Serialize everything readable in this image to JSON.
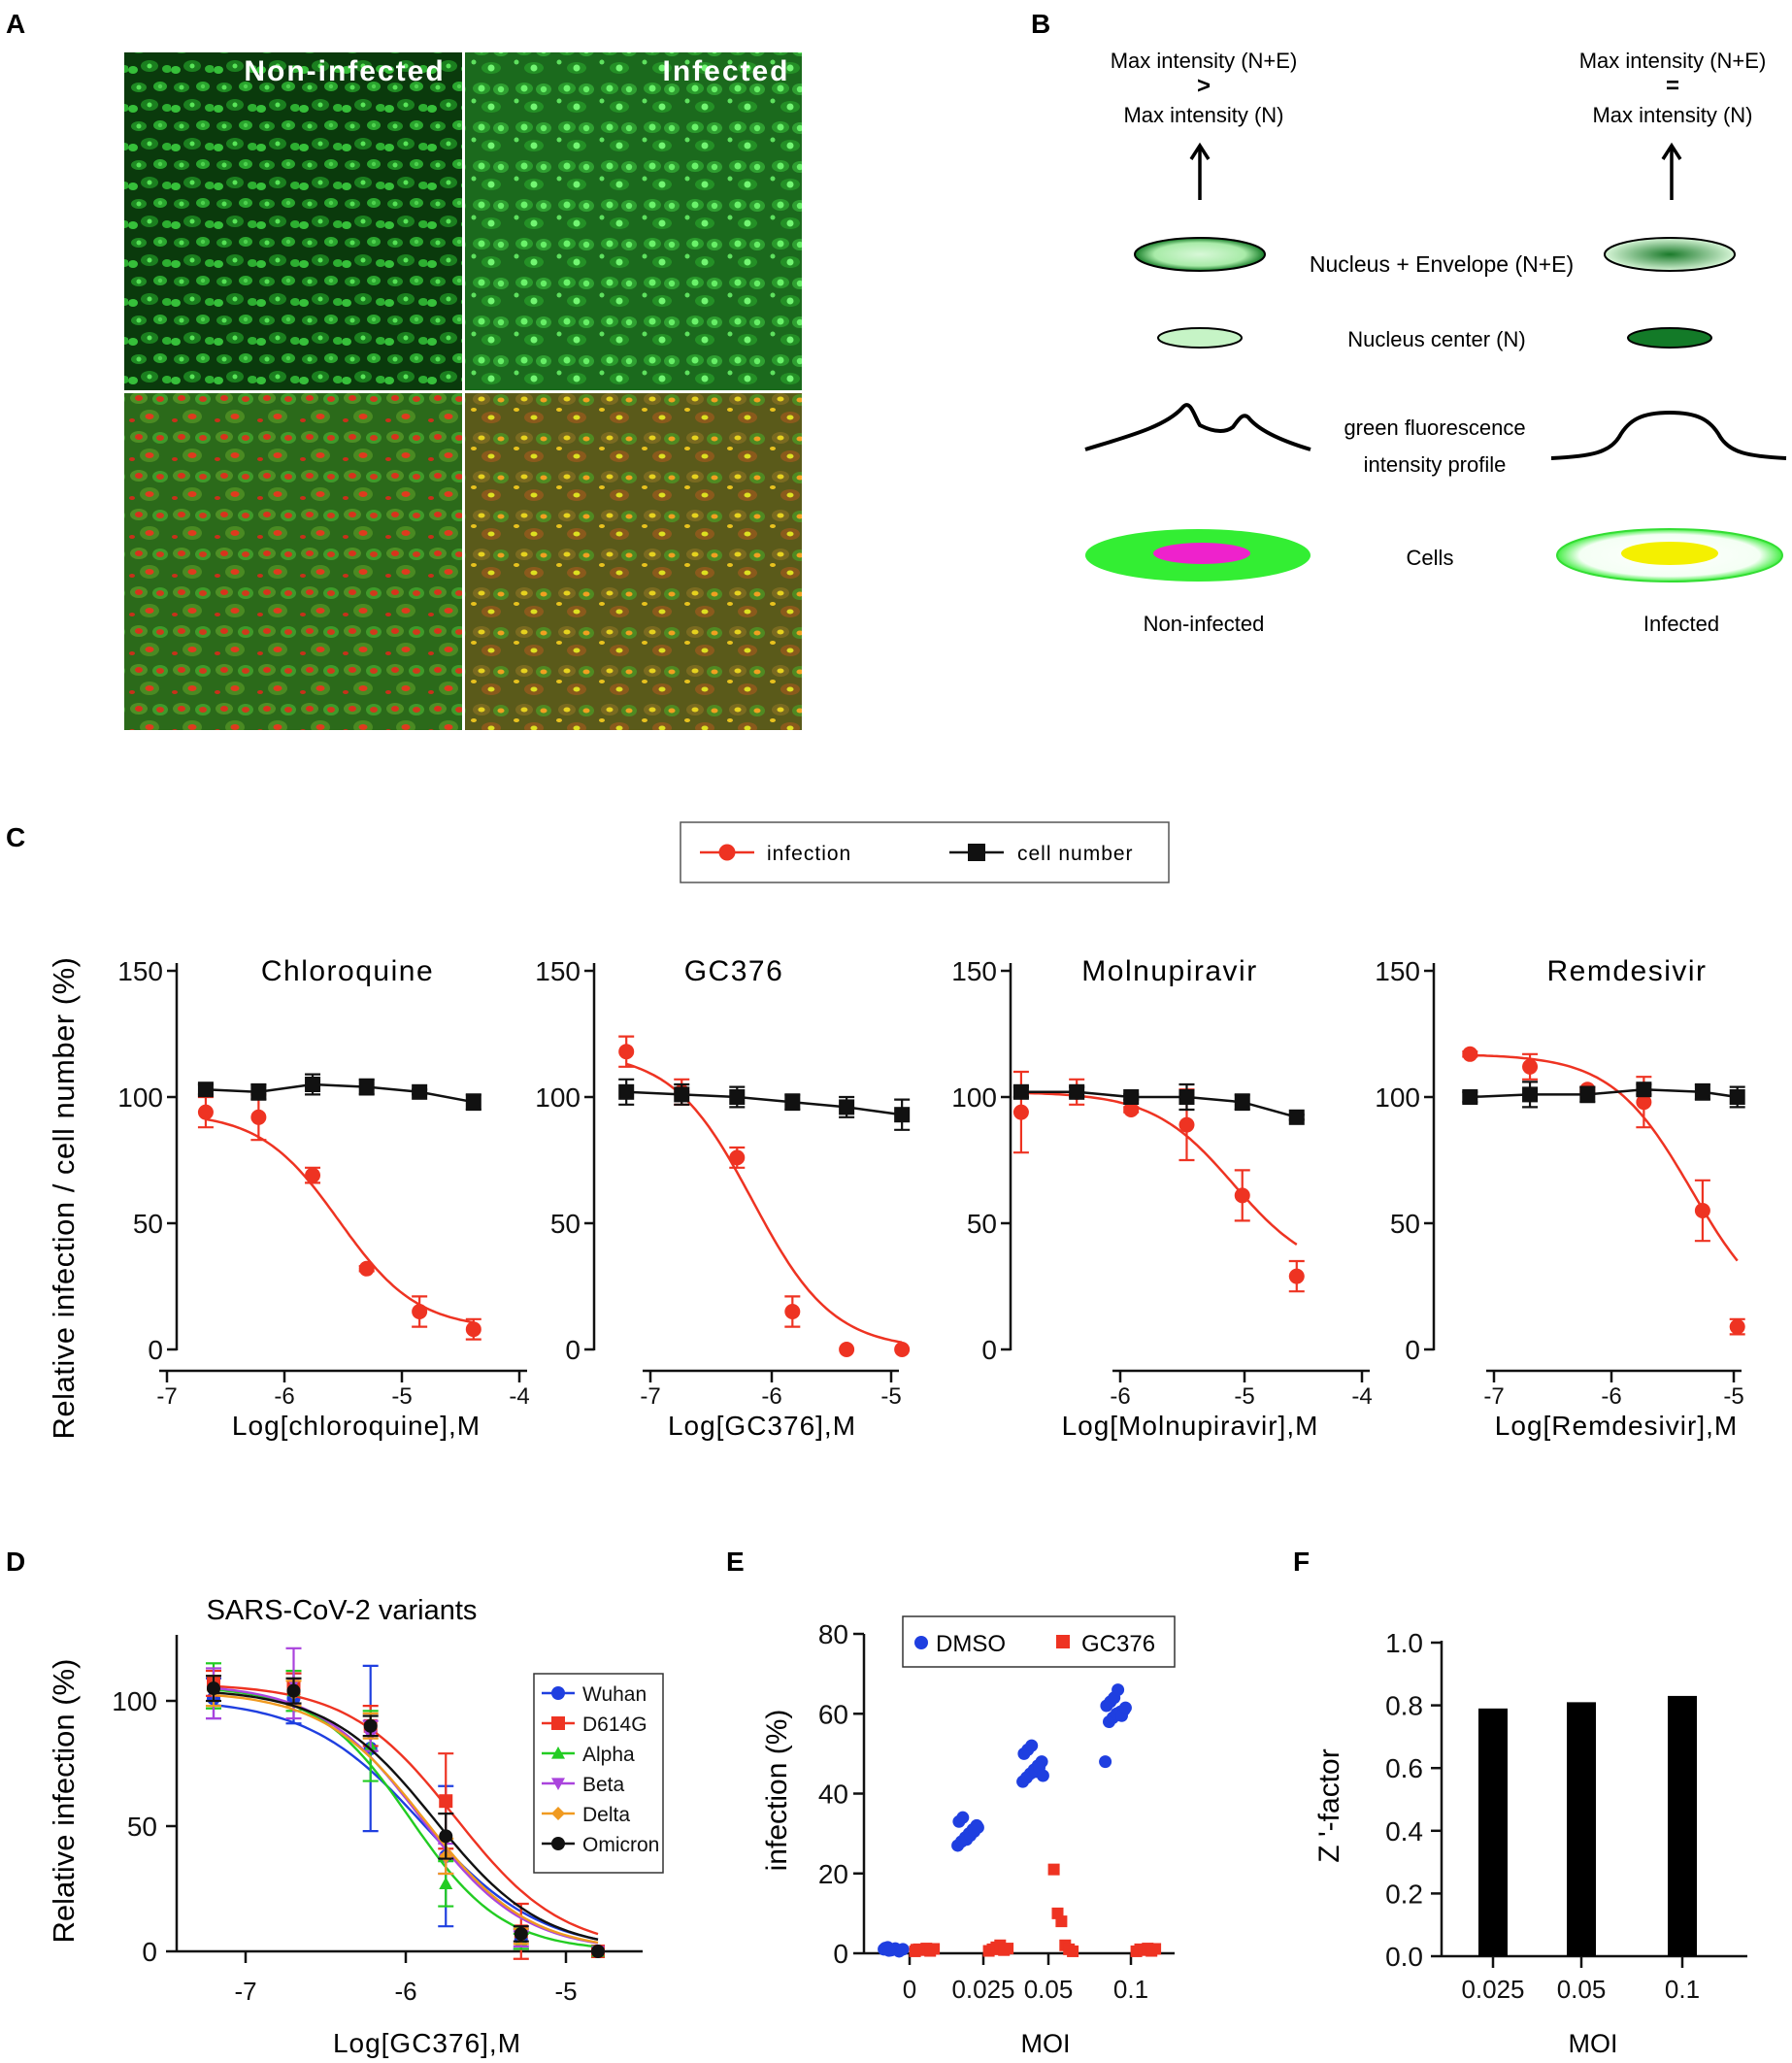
{
  "panel_letters": {
    "a": "A",
    "b": "B",
    "c": "C",
    "d": "D",
    "e": "E",
    "f": "F"
  },
  "colors": {
    "red": "#ee3322",
    "black": "#111111",
    "blue": "#1f3fe0",
    "green": "#22cc22",
    "violet": "#aa44dd",
    "orange": "#f09a20",
    "bright_green": "#33ee33",
    "magenta": "#ee22cc",
    "yellow": "#f4f000"
  },
  "panel_a": {
    "label_noninfected": "Non-infected",
    "label_infected": "Infected"
  },
  "panel_b": {
    "left_top": "Max intensity (N+E)",
    "left_op": ">",
    "left_bottom": "Max intensity (N)",
    "right_top": "Max intensity (N+E)",
    "right_op": "=",
    "right_bottom": "Max intensity (N)",
    "nucleus_envelope": "Nucleus + Envelope (N+E)",
    "nucleus_center": "Nucleus center (N)",
    "profile_line1": "green fluorescence",
    "profile_line2": "intensity profile",
    "cells": "Cells",
    "noninfected": "Non-infected",
    "infected": "Infected"
  },
  "chart_data": [
    {
      "panel": "C",
      "type": "line",
      "legend": [
        "infection",
        "cell number"
      ],
      "ylabel": "Relative infection / cell number (%)",
      "ylim": [
        0,
        150
      ],
      "yticks": [
        "0",
        "50",
        "100",
        "150"
      ],
      "subplots": [
        {
          "title": "Chloroquine",
          "xlabel": "Log[chloroquine],M",
          "xlim": [
            -7,
            -4
          ],
          "xticks": [
            "-7",
            "-6",
            "-5",
            "-4"
          ],
          "series": [
            {
              "name": "infection",
              "x": [
                -6.67,
                -6.22,
                -5.76,
                -5.3,
                -4.85,
                -4.39
              ],
              "y": [
                94,
                92,
                69,
                32,
                15,
                8
              ],
              "err": [
                6,
                9,
                3,
                1,
                6,
                4
              ]
            },
            {
              "name": "cell number",
              "x": [
                -6.67,
                -6.22,
                -5.76,
                -5.3,
                -4.85,
                -4.39
              ],
              "y": [
                103,
                102,
                105,
                104,
                102,
                98
              ],
              "err": [
                2,
                3,
                4,
                3,
                1,
                3
              ]
            }
          ]
        },
        {
          "title": "GC376",
          "xlabel": "Log[GC376],M",
          "xlim": [
            -7.3,
            -4.8
          ],
          "xticks": [
            "-7",
            "-6",
            "-5"
          ],
          "series": [
            {
              "name": "infection",
              "x": [
                -7.2,
                -6.74,
                -6.28,
                -5.82,
                -5.37,
                -4.91
              ],
              "y": [
                118,
                102,
                76,
                15,
                0,
                0
              ],
              "err": [
                6,
                5,
                4,
                6,
                0,
                0
              ]
            },
            {
              "name": "cell number",
              "x": [
                -7.2,
                -6.74,
                -6.28,
                -5.82,
                -5.37,
                -4.91
              ],
              "y": [
                102,
                101,
                100,
                98,
                96,
                93
              ],
              "err": [
                5,
                4,
                4,
                3,
                4,
                6
              ]
            }
          ]
        },
        {
          "title": "Molnupiravir",
          "xlabel": "Log[Molnupiravir],M",
          "xlim": [
            -7,
            -4
          ],
          "xticks": [
            "-6",
            "-5",
            "-4"
          ],
          "series": [
            {
              "name": "infection",
              "x": [
                -6.82,
                -6.36,
                -5.91,
                -5.45,
                -4.99,
                -4.54
              ],
              "y": [
                94,
                102,
                95,
                89,
                61,
                29
              ],
              "err": [
                16,
                5,
                1,
                14,
                10,
                6
              ]
            },
            {
              "name": "cell number",
              "x": [
                -6.82,
                -6.36,
                -5.91,
                -5.45,
                -4.99,
                -4.54
              ],
              "y": [
                102,
                102,
                100,
                100,
                98,
                92
              ],
              "err": [
                2,
                2,
                1,
                5,
                3,
                1
              ]
            }
          ]
        },
        {
          "title": "Remdesivir",
          "xlabel": "Log[Remdesivir],M",
          "xlim": [
            -7.5,
            -4.8
          ],
          "xticks": [
            "-7",
            "-6",
            "-5"
          ],
          "series": [
            {
              "name": "infection",
              "x": [
                -7.2,
                -6.7,
                -6.22,
                -5.75,
                -5.26,
                -4.97
              ],
              "y": [
                117,
                112,
                103,
                98,
                55,
                9
              ],
              "err": [
                1,
                5,
                1,
                10,
                12,
                3
              ]
            },
            {
              "name": "cell number",
              "x": [
                -7.2,
                -6.7,
                -6.22,
                -5.75,
                -5.26,
                -4.97
              ],
              "y": [
                100,
                101,
                101,
                103,
                102,
                100
              ],
              "err": [
                2,
                5,
                3,
                2,
                3,
                4
              ]
            }
          ]
        }
      ]
    },
    {
      "panel": "D",
      "type": "line",
      "title": "SARS-CoV-2 variants",
      "xlabel": "Log[GC376],M",
      "ylabel": "Relative infection (%)",
      "xlim": [
        -7.5,
        -4.5
      ],
      "ylim": [
        0,
        130
      ],
      "xticks": [
        "-7",
        "-6",
        "-5"
      ],
      "yticks": [
        "0",
        "50",
        "100"
      ],
      "series": [
        {
          "name": "Wuhan",
          "color_key": "blue",
          "marker": "circle",
          "x": [
            -7.2,
            -6.7,
            -6.22,
            -5.75,
            -5.28,
            -4.8
          ],
          "y": [
            101,
            101,
            81,
            38,
            5,
            0
          ],
          "err": [
            8,
            10,
            33,
            28,
            4,
            0
          ]
        },
        {
          "name": "D614G",
          "color_key": "red",
          "marker": "square",
          "x": [
            -7.2,
            -6.7,
            -6.22,
            -5.75,
            -5.28,
            -4.8
          ],
          "y": [
            107,
            105,
            90,
            60,
            8,
            0
          ],
          "err": [
            5,
            6,
            8,
            19,
            11,
            0
          ]
        },
        {
          "name": "Alpha",
          "color_key": "green",
          "marker": "triangle-up",
          "x": [
            -7.2,
            -6.7,
            -6.22,
            -5.75,
            -5.28,
            -4.8
          ],
          "y": [
            106,
            104,
            82,
            27,
            4,
            0
          ],
          "err": [
            9,
            8,
            14,
            9,
            3,
            0
          ]
        },
        {
          "name": "Beta",
          "color_key": "violet",
          "marker": "triangle-down",
          "x": [
            -7.2,
            -6.7,
            -6.22,
            -5.75,
            -5.28,
            -4.8
          ],
          "y": [
            103,
            107,
            86,
            37,
            5,
            0
          ],
          "err": [
            10,
            14,
            6,
            6,
            3,
            0
          ]
        },
        {
          "name": "Delta",
          "color_key": "orange",
          "marker": "diamond",
          "x": [
            -7.2,
            -6.7,
            -6.22,
            -5.75,
            -5.28,
            -4.8
          ],
          "y": [
            104,
            103,
            90,
            38,
            6,
            0
          ],
          "err": [
            6,
            5,
            5,
            7,
            3,
            0
          ]
        },
        {
          "name": "Omicron",
          "color_key": "black",
          "marker": "circle",
          "x": [
            -7.2,
            -6.7,
            -6.22,
            -5.75,
            -5.28,
            -4.8
          ],
          "y": [
            105,
            104,
            90,
            46,
            7,
            0
          ],
          "err": [
            5,
            5,
            4,
            9,
            3,
            0
          ]
        }
      ]
    },
    {
      "panel": "E",
      "type": "scatter",
      "xlabel": "MOI",
      "ylabel": "infection (%)",
      "ylim": [
        0,
        80
      ],
      "yticks": [
        "0",
        "20",
        "40",
        "60",
        "80"
      ],
      "categories": [
        "0",
        "0.025",
        "0.05",
        "0.1"
      ],
      "series": [
        {
          "name": "DMSO",
          "color_key": "blue",
          "marker": "circle",
          "values": [
            [
              1,
              1.5,
              0.8,
              1.2,
              0.5,
              1,
              1.3,
              0.7
            ],
            [
              27,
              28,
              29,
              30,
              31,
              32,
              33,
              34,
              28.5,
              29.5,
              30.5,
              31.5
            ],
            [
              43,
              44,
              45,
              46,
              47,
              48,
              50,
              51,
              52,
              45.5,
              46.5,
              44.5
            ],
            [
              48,
              58,
              59,
              60,
              60.5,
              61,
              62,
              63,
              64,
              66,
              59.5,
              61.5
            ]
          ]
        },
        {
          "name": "GC376",
          "color_key": "red",
          "marker": "square",
          "values": [
            [
              0.5,
              1,
              0.8,
              1.2,
              0.6,
              1.1,
              0.9
            ],
            [
              0.6,
              1,
              1.5,
              2,
              0.8,
              1.2
            ],
            [
              21,
              10,
              8,
              2,
              1,
              0.5
            ],
            [
              0.5,
              1,
              0.8,
              1.2,
              0.6,
              1.1
            ]
          ]
        }
      ]
    },
    {
      "panel": "F",
      "type": "bar",
      "xlabel": "MOI",
      "ylabel": "Z '-factor",
      "ylim": [
        0,
        1.0
      ],
      "yticks": [
        "0.0",
        "0.2",
        "0.4",
        "0.6",
        "0.8",
        "1.0"
      ],
      "categories": [
        "0.025",
        "0.05",
        "0.1"
      ],
      "values": [
        0.79,
        0.81,
        0.83
      ]
    }
  ]
}
